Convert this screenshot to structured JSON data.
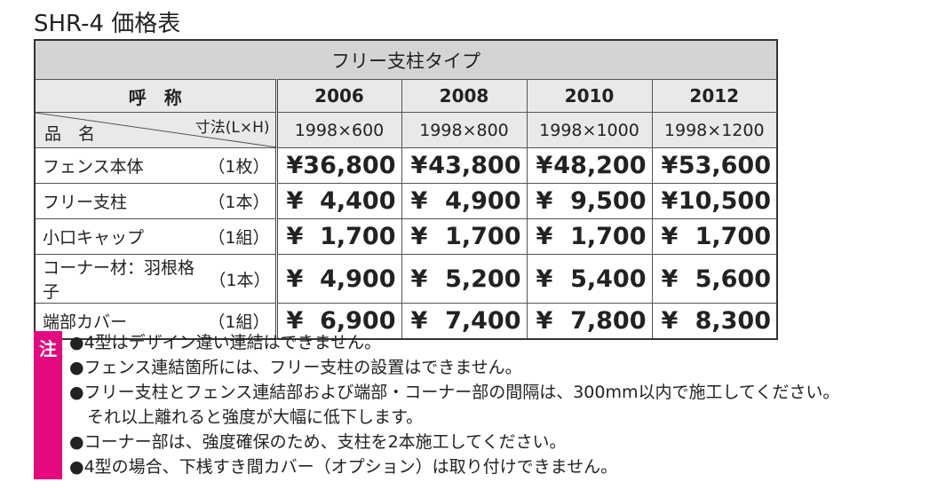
{
  "title": "SHR-4 価格表",
  "table": {
    "type_label": "フリー支柱タイプ",
    "name_header": "呼　称",
    "item_header": "品　名",
    "size_header": "寸法(L×H)",
    "currency": "¥",
    "columns": [
      {
        "name": "2006",
        "size": "1998×600"
      },
      {
        "name": "2008",
        "size": "1998×800"
      },
      {
        "name": "2010",
        "size": "1998×1000"
      },
      {
        "name": "2012",
        "size": "1998×1200"
      }
    ],
    "rows": [
      {
        "item": "フェンス本体",
        "unit": "（1枚）",
        "prices": [
          "36,800",
          "43,800",
          "48,200",
          "53,600"
        ]
      },
      {
        "item": "フリー支柱",
        "unit": "（1本）",
        "prices": [
          "4,400",
          "4,900",
          "9,500",
          "10,500"
        ]
      },
      {
        "item": "小口キャップ",
        "unit": "（1組）",
        "prices": [
          "1,700",
          "1,700",
          "1,700",
          "1,700"
        ]
      },
      {
        "item": "コーナー材：羽根格子",
        "unit": "（1本）",
        "prices": [
          "4,900",
          "5,200",
          "5,400",
          "5,600"
        ]
      },
      {
        "item": "端部カバー",
        "unit": "（1組）",
        "prices": [
          "6,900",
          "7,400",
          "7,800",
          "8,300"
        ]
      }
    ]
  },
  "note_label": "注",
  "notes": [
    [
      "●4型はデザイン違い連結はできません。"
    ],
    [
      "●フェンス連結箇所には、フリー支柱の設置はできません。"
    ],
    [
      "●フリー支柱とフェンス連結部および端部・コーナー部の間隔は、300mm以内で施工してください。",
      "それ以上離れると強度が大幅に低下します。"
    ],
    [
      "●コーナー部は、強度確保のため、支柱を2本施工してください。"
    ],
    [
      "●4型の場合、下桟すき間カバー（オプション）は取り付けできません。"
    ]
  ]
}
